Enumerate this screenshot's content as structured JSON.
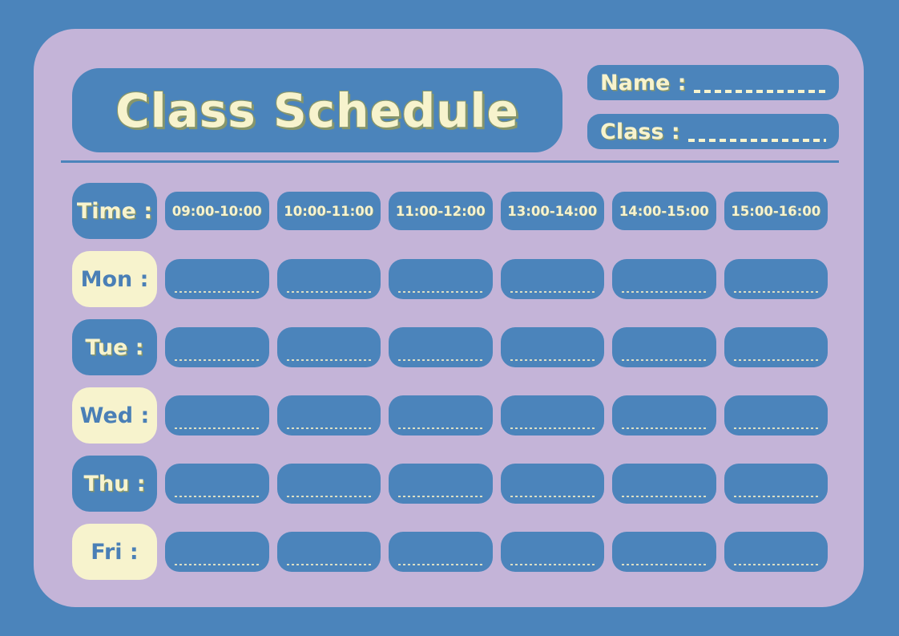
{
  "colors": {
    "background_blue": "#4b84bb",
    "panel_purple": "#c4b4d8",
    "box_blue": "#4b84bb",
    "cream": "#f7f3cd",
    "day_text_blue": "#4a7fb6",
    "title_shadow_olive": "#87966b"
  },
  "header": {
    "title": "Class Schedule",
    "name_label": "Name :",
    "name_value": "",
    "class_label": "Class :",
    "class_value": ""
  },
  "schedule": {
    "time_label": "Time :",
    "time_slots": [
      "09:00-10:00",
      "10:00-11:00",
      "11:00-12:00",
      "13:00-14:00",
      "14:00-15:00",
      "15:00-16:00"
    ],
    "days": [
      {
        "key": "mon",
        "label": "Mon :",
        "variant": "cream"
      },
      {
        "key": "tue",
        "label": "Tue :",
        "variant": "blue"
      },
      {
        "key": "wed",
        "label": "Wed :",
        "variant": "cream"
      },
      {
        "key": "thu",
        "label": "Thu :",
        "variant": "blue"
      },
      {
        "key": "fri",
        "label": "Fri :",
        "variant": "cream"
      }
    ]
  }
}
